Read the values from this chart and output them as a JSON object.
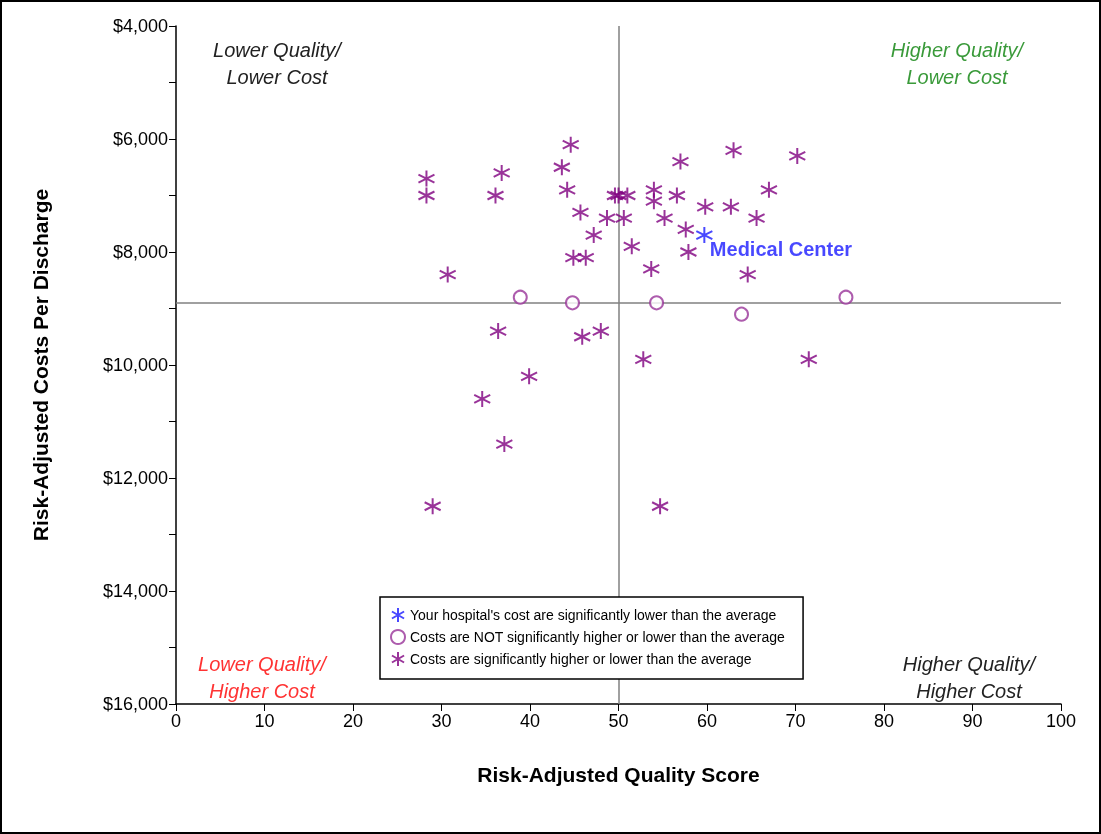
{
  "chart_data": {
    "type": "scatter",
    "xlabel": "Risk-Adjusted Quality Score",
    "ylabel": "Risk-Adjusted Costs Per Discharge",
    "xlim": [
      0,
      100
    ],
    "xticks": [
      0,
      10,
      20,
      30,
      40,
      50,
      60,
      70,
      80,
      90,
      100
    ],
    "ylim": [
      16000,
      4000
    ],
    "yticks": [
      {
        "value": 4000,
        "label": "$4,000"
      },
      {
        "value": 5000,
        "label": null
      },
      {
        "value": 6000,
        "label": "$6,000"
      },
      {
        "value": 7000,
        "label": null
      },
      {
        "value": 8000,
        "label": "$8,000"
      },
      {
        "value": 9000,
        "label": null
      },
      {
        "value": 10000,
        "label": "$10,000"
      },
      {
        "value": 11000,
        "label": null
      },
      {
        "value": 12000,
        "label": "$12,000"
      },
      {
        "value": 13000,
        "label": null
      },
      {
        "value": 14000,
        "label": "$14,000"
      },
      {
        "value": 15000,
        "label": null
      },
      {
        "value": 16000,
        "label": "$16,000"
      }
    ],
    "grid": false,
    "legend": "bottom",
    "series": [
      {
        "name": "Your hospital's cost are significantly lower than the average",
        "color": "#1a1aff",
        "marker": "cross",
        "x": [
          59.7
        ],
        "values": [
          7700
        ]
      },
      {
        "name": "Costs are NOT significantly higher or lower than the average",
        "color": "#993399",
        "marker": "circle",
        "x": [
          38.9,
          44.8,
          54.3,
          63.9,
          75.7
        ],
        "values": [
          8800,
          8900,
          8900,
          9100,
          8800
        ]
      },
      {
        "name": "Costs are significantly higher or lower than the average",
        "color": "#800080",
        "marker": "cross",
        "x": [
          28.3,
          28.3,
          30.7,
          36.1,
          36.8,
          36.4,
          37.1,
          34.6,
          39.9,
          29.0,
          43.6,
          44.6,
          44.2,
          45.7,
          44.9,
          46.3,
          47.2,
          48.7,
          45.9,
          48.0,
          49.6,
          50.0,
          51.0,
          50.6,
          51.5,
          54.0,
          54.0,
          53.7,
          57.0,
          56.6,
          55.2,
          57.6,
          57.9,
          59.8,
          63.0,
          62.7,
          67.0,
          65.6,
          70.2,
          64.6,
          52.8,
          71.5,
          54.7
        ],
        "values": [
          6700,
          7000,
          8400,
          7000,
          6600,
          9400,
          11400,
          10600,
          10200,
          12500,
          6500,
          6100,
          6900,
          7300,
          8100,
          8100,
          7700,
          7400,
          9500,
          9400,
          7000,
          7000,
          7000,
          7400,
          7900,
          6900,
          7100,
          8300,
          6400,
          7000,
          7400,
          7600,
          8000,
          7200,
          6200,
          7200,
          6900,
          7400,
          6300,
          8400,
          9900,
          9900,
          12500
        ]
      }
    ],
    "ref_lines": [
      {
        "axis": "x",
        "value": 50
      },
      {
        "axis": "y",
        "value": 8900
      }
    ],
    "annotations": [
      "Lower Quality/\nLower Cost",
      "Higher Quality/\nLower Cost",
      "Lower Quality/\nHigher Cost",
      "Higher Quality/\nHigher Cost",
      {
        "text": "Medical Center",
        "x": 59.7,
        "y": 7700
      }
    ]
  }
}
